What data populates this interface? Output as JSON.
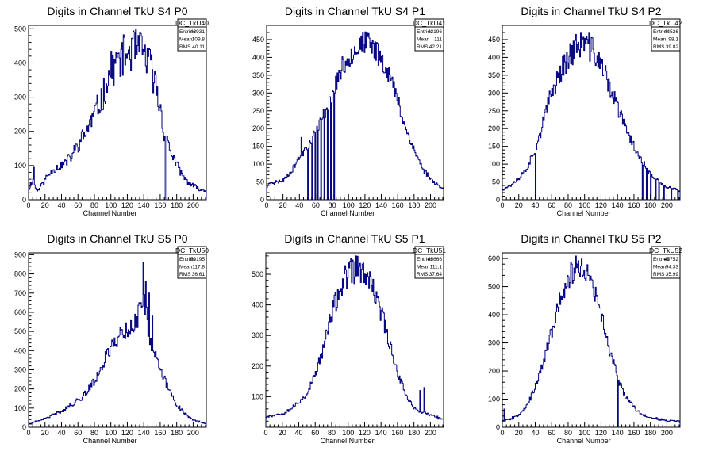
{
  "x_axis": {
    "label": "Channel Number",
    "ticks": [
      0,
      20,
      40,
      60,
      80,
      100,
      120,
      140,
      160,
      180,
      200
    ],
    "range": [
      0,
      216
    ]
  },
  "stats_labels": {
    "entries": "Entries",
    "mean": "Mean",
    "rms": "RMS"
  },
  "colors": {
    "line": "#00007f",
    "axis": "#000000",
    "background": "#ffffff"
  },
  "chart_data": [
    {
      "type": "histogram",
      "title": "Digits in Channel TkU S4 P0",
      "xlabel": "Channel Number",
      "xlim": [
        0,
        216
      ],
      "ylim": [
        0,
        510
      ],
      "yticks": [
        0,
        100,
        200,
        300,
        400,
        500
      ],
      "stats": {
        "name": "DC_TkU40",
        "entries": "43931",
        "mean": "109.8",
        "rms": "40.11"
      },
      "profile_x": [
        0,
        5,
        10,
        15,
        20,
        30,
        40,
        50,
        60,
        70,
        80,
        90,
        100,
        110,
        120,
        130,
        140,
        150,
        160,
        165,
        170,
        180,
        190,
        200,
        210,
        216
      ],
      "profile_y": [
        30,
        60,
        25,
        40,
        60,
        90,
        100,
        120,
        160,
        200,
        250,
        300,
        380,
        410,
        430,
        440,
        430,
        380,
        270,
        190,
        160,
        100,
        60,
        40,
        30,
        25
      ],
      "spikes": [
        {
          "x": 166,
          "y": 0
        },
        {
          "x": 167,
          "y": 0
        },
        {
          "x": 6,
          "y": 95
        },
        {
          "x": 3,
          "y": 45
        }
      ],
      "noise": 0.14,
      "seed": 11
    },
    {
      "type": "histogram",
      "title": "Digits in Channel TkU S4 P1",
      "xlabel": "Channel Number",
      "xlim": [
        0,
        216
      ],
      "ylim": [
        0,
        490
      ],
      "yticks": [
        0,
        50,
        100,
        150,
        200,
        250,
        300,
        350,
        400,
        450
      ],
      "stats": {
        "name": "DC_TkU41",
        "entries": "42196",
        "mean": "111",
        "rms": "42.21"
      },
      "profile_x": [
        0,
        5,
        10,
        20,
        30,
        40,
        50,
        60,
        70,
        80,
        90,
        100,
        110,
        120,
        130,
        140,
        150,
        160,
        170,
        180,
        190,
        200,
        210,
        216
      ],
      "profile_y": [
        35,
        50,
        48,
        55,
        80,
        120,
        150,
        190,
        240,
        300,
        360,
        400,
        430,
        440,
        430,
        400,
        350,
        280,
        200,
        140,
        90,
        60,
        40,
        30
      ],
      "spikes": [
        {
          "x": 50,
          "y": 0
        },
        {
          "x": 55,
          "y": 0
        },
        {
          "x": 59,
          "y": 0
        },
        {
          "x": 62,
          "y": 0
        },
        {
          "x": 66,
          "y": 0
        },
        {
          "x": 70,
          "y": 0
        },
        {
          "x": 74,
          "y": 0
        },
        {
          "x": 78,
          "y": 0
        },
        {
          "x": 82,
          "y": 0
        },
        {
          "x": 42,
          "y": 175
        },
        {
          "x": 46,
          "y": 145
        }
      ],
      "noise": 0.08,
      "seed": 23
    },
    {
      "type": "histogram",
      "title": "Digits in Channel TkU S4 P2",
      "xlabel": "Channel Number",
      "xlim": [
        0,
        216
      ],
      "ylim": [
        0,
        490
      ],
      "yticks": [
        0,
        50,
        100,
        150,
        200,
        250,
        300,
        350,
        400,
        450
      ],
      "stats": {
        "name": "DC_TkU42",
        "entries": "44526",
        "mean": "98.1",
        "rms": "39.82"
      },
      "profile_x": [
        0,
        5,
        10,
        20,
        30,
        40,
        50,
        60,
        70,
        80,
        90,
        100,
        110,
        120,
        130,
        140,
        150,
        160,
        170,
        180,
        190,
        200,
        210,
        216
      ],
      "profile_y": [
        30,
        35,
        40,
        60,
        90,
        140,
        220,
        300,
        360,
        400,
        430,
        440,
        420,
        380,
        320,
        260,
        200,
        150,
        110,
        70,
        50,
        35,
        30,
        25
      ],
      "spikes": [
        {
          "x": 40,
          "y": 0
        },
        {
          "x": 175,
          "y": 0
        },
        {
          "x": 180,
          "y": 0
        },
        {
          "x": 186,
          "y": 0
        },
        {
          "x": 190,
          "y": 0
        },
        {
          "x": 196,
          "y": 0
        },
        {
          "x": 205,
          "y": 0
        },
        {
          "x": 213,
          "y": 0
        },
        {
          "x": 170,
          "y": 0
        }
      ],
      "noise": 0.09,
      "seed": 37
    },
    {
      "type": "histogram",
      "title": "Digits in Channel TkU S5 P0",
      "xlabel": "Channel Number",
      "xlim": [
        0,
        216
      ],
      "ylim": [
        0,
        910
      ],
      "yticks": [
        0,
        100,
        200,
        300,
        400,
        500,
        600,
        700,
        800,
        900
      ],
      "stats": {
        "name": "DC_TkU50",
        "entries": "50195",
        "mean": "117.8",
        "rms": "36.61"
      },
      "profile_x": [
        0,
        10,
        20,
        30,
        40,
        50,
        60,
        70,
        80,
        90,
        100,
        110,
        120,
        130,
        135,
        140,
        145,
        150,
        160,
        170,
        180,
        190,
        200,
        210,
        216
      ],
      "profile_y": [
        15,
        30,
        45,
        65,
        85,
        110,
        140,
        180,
        240,
        330,
        420,
        480,
        510,
        540,
        600,
        700,
        520,
        420,
        300,
        200,
        120,
        70,
        40,
        25,
        20
      ],
      "spikes": [
        {
          "x": 139,
          "y": 860
        },
        {
          "x": 142,
          "y": 760
        },
        {
          "x": 146,
          "y": 700
        },
        {
          "x": 134,
          "y": 650
        },
        {
          "x": 150,
          "y": 580
        }
      ],
      "noise": 0.1,
      "seed": 41
    },
    {
      "type": "histogram",
      "title": "Digits in Channel TkU S5 P1",
      "xlabel": "Channel Number",
      "xlim": [
        0,
        216
      ],
      "ylim": [
        0,
        570
      ],
      "yticks": [
        100,
        200,
        300,
        400,
        500
      ],
      "stats": {
        "name": "DC_TkU51",
        "entries": "45666",
        "mean": "111.1",
        "rms": "37.64"
      },
      "profile_x": [
        0,
        10,
        20,
        30,
        40,
        50,
        60,
        70,
        80,
        90,
        100,
        110,
        120,
        130,
        140,
        150,
        160,
        170,
        180,
        190,
        200,
        210,
        216
      ],
      "profile_y": [
        35,
        40,
        45,
        60,
        80,
        110,
        170,
        260,
        370,
        450,
        500,
        520,
        500,
        450,
        380,
        280,
        180,
        110,
        60,
        50,
        40,
        30,
        25
      ],
      "spikes": [
        {
          "x": 187,
          "y": 120
        },
        {
          "x": 192,
          "y": 130
        }
      ],
      "noise": 0.09,
      "seed": 53
    },
    {
      "type": "histogram",
      "title": "Digits in Channel TkU S5 P2",
      "xlabel": "Channel Number",
      "xlim": [
        0,
        216
      ],
      "ylim": [
        0,
        620
      ],
      "yticks": [
        0,
        100,
        200,
        300,
        400,
        500,
        600
      ],
      "stats": {
        "name": "DC_TkU52",
        "entries": "45752",
        "mean": "94.33",
        "rms": "35.99"
      },
      "profile_x": [
        0,
        10,
        20,
        30,
        40,
        50,
        60,
        70,
        80,
        90,
        100,
        110,
        120,
        130,
        140,
        150,
        160,
        170,
        180,
        190,
        200,
        210,
        216
      ],
      "profile_y": [
        25,
        30,
        45,
        80,
        140,
        230,
        340,
        450,
        530,
        570,
        560,
        500,
        400,
        280,
        180,
        110,
        70,
        45,
        35,
        30,
        25,
        22,
        20
      ],
      "spikes": [
        {
          "x": 140,
          "y": 0
        },
        {
          "x": 2,
          "y": 65
        }
      ],
      "noise": 0.08,
      "seed": 67
    }
  ]
}
